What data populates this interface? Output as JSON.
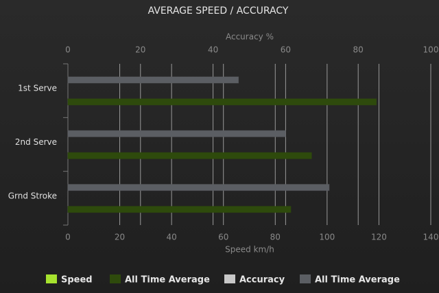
{
  "chart_data": {
    "type": "bar",
    "orientation": "horizontal",
    "title": "AVERAGE SPEED / ACCURACY",
    "categories": [
      "1st Serve",
      "2nd Serve",
      "Grnd Stroke"
    ],
    "xlabel": "Speed km/h",
    "xlim": [
      0,
      140
    ],
    "xticks": [
      0,
      20,
      40,
      60,
      80,
      100,
      120,
      140
    ],
    "x2label": "Accuracy %",
    "x2lim": [
      0,
      100
    ],
    "x2ticks": [
      0,
      20,
      40,
      60,
      80,
      100
    ],
    "grid": true,
    "legend": "bottom",
    "series": [
      {
        "name": "Speed",
        "color": "#a6e22e",
        "values": [
          null,
          null,
          null
        ]
      },
      {
        "name": "All Time Average",
        "color": "#2e4a0c",
        "values": [
          119,
          94,
          86
        ]
      },
      {
        "name": "Accuracy",
        "color": "#c8c8c8",
        "axis": "x2",
        "values": [
          null,
          null,
          null
        ]
      },
      {
        "name": "All Time Average",
        "color": "#5b5e63",
        "axis": "x2",
        "values": [
          47,
          60,
          72
        ]
      }
    ]
  }
}
